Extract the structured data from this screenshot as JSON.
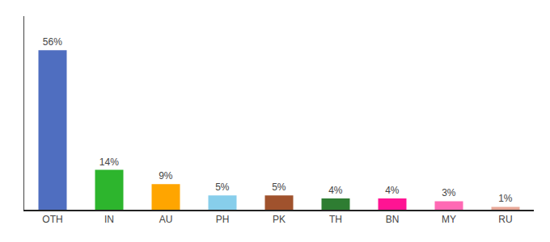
{
  "chart_data": {
    "type": "bar",
    "categories": [
      "OTH",
      "IN",
      "AU",
      "PH",
      "PK",
      "TH",
      "BN",
      "MY",
      "RU"
    ],
    "values": [
      56,
      14,
      9,
      5,
      5,
      4,
      4,
      3,
      1
    ],
    "value_labels": [
      "56%",
      "14%",
      "9%",
      "5%",
      "5%",
      "4%",
      "4%",
      "3%",
      "1%"
    ],
    "colors": [
      "#4F6EC0",
      "#2DB52D",
      "#FFA500",
      "#87CEEB",
      "#A0522D",
      "#2E7D32",
      "#FF1493",
      "#FF69B4",
      "#E8A898"
    ],
    "ylim": [
      0,
      68
    ],
    "data_labels": true,
    "tick_labels": "x",
    "grid": false
  }
}
